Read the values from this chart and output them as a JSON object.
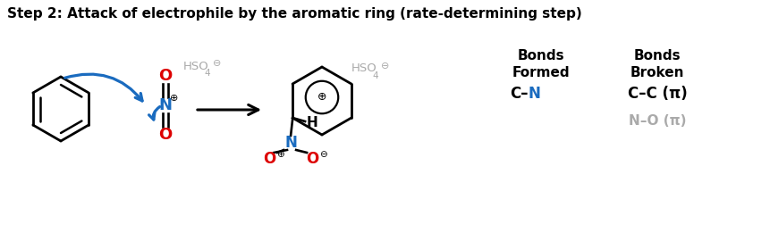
{
  "title": "Step 2: Attack of electrophile by the aromatic ring (rate-determining step)",
  "title_fontsize": 11,
  "bg_color": "#ffffff",
  "black": "#000000",
  "blue": "#1a6bbf",
  "red": "#dd0000",
  "gray": "#aaaaaa",
  "bonds_formed_header": "Bonds\nFormed",
  "bonds_broken_header": "Bonds\nBroken",
  "cc_bond": "C–C (π)",
  "no_bond": "N–O (π)"
}
